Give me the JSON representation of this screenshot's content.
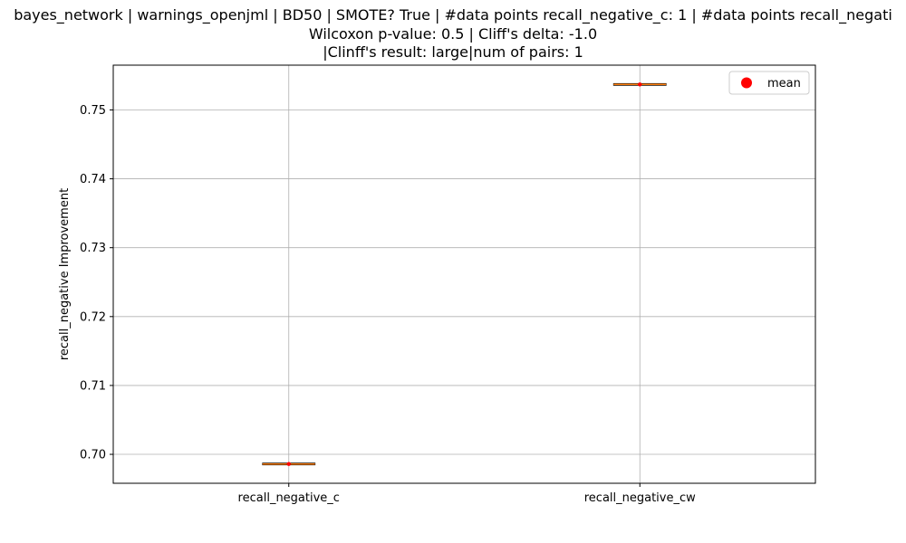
{
  "chart_data": {
    "type": "box",
    "title_lines": [
      "bayes_network | warnings_openjml | BD50 | SMOTE? True | #data points recall_negative_c: 1 | #data points recall_negati",
      "Wilcoxon p-value: 0.5 | Cliff's delta: -1.0",
      "|Clinff's result: large|num of pairs: 1"
    ],
    "xlabel": "",
    "ylabel": "recall_negative Improvement",
    "categories": [
      "recall_negative_c",
      "recall_negative_cw"
    ],
    "values": [
      0.6986,
      0.7537
    ],
    "means": [
      0.6986,
      0.7537
    ],
    "ylim": [
      0.6958,
      0.7565
    ],
    "yticks": [
      0.7,
      0.71,
      0.72,
      0.73,
      0.74,
      0.75
    ],
    "ytick_labels": [
      "0.70",
      "0.71",
      "0.72",
      "0.73",
      "0.74",
      "0.75"
    ],
    "grid": true,
    "legend": {
      "position": "top-right",
      "entries": [
        {
          "label": "mean",
          "marker": "circle",
          "color": "#ff0000"
        }
      ]
    },
    "colors": {
      "median": "#ff7f0e",
      "mean": "#ff0000",
      "grid": "#b0b0b0",
      "axes": "#000000"
    }
  }
}
